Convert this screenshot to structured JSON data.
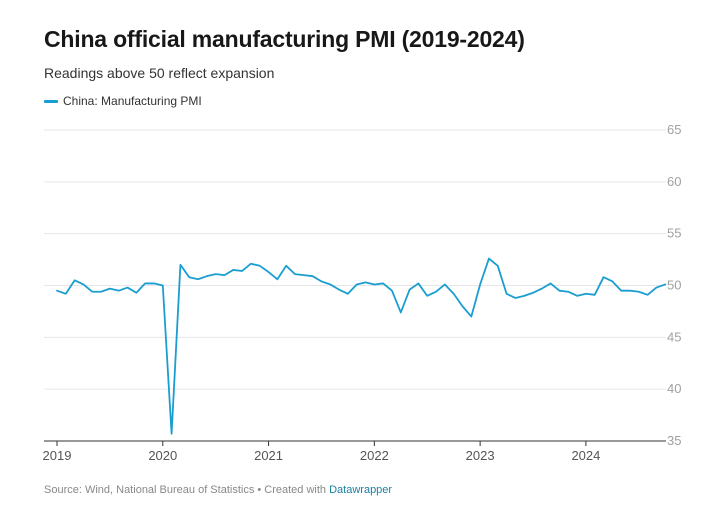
{
  "header": {
    "title": "China official manufacturing PMI (2019-2024)",
    "subtitle": "Readings above 50 reflect expansion"
  },
  "legend": {
    "label": "China: Manufacturing PMI"
  },
  "footer": {
    "source": "Source: Wind, National Bureau of Statistics • Created with",
    "link": "Datawrapper"
  },
  "colors": {
    "series": "#1a9ed1",
    "grid": "#e6e6e6",
    "axis": "#333333"
  },
  "chart_data": {
    "type": "line",
    "title": "China official manufacturing PMI (2019-2024)",
    "subtitle": "Readings above 50 reflect expansion",
    "xlabel": "",
    "ylabel": "",
    "ylim": [
      35,
      65
    ],
    "yticks": [
      35,
      40,
      45,
      50,
      55,
      60,
      65
    ],
    "xticks": [
      "2019",
      "2020",
      "2021",
      "2022",
      "2023",
      "2024"
    ],
    "x_start": "2019-01",
    "series": [
      {
        "name": "China: Manufacturing PMI",
        "values": [
          49.5,
          49.2,
          50.5,
          50.1,
          49.4,
          49.4,
          49.7,
          49.5,
          49.8,
          49.3,
          50.2,
          50.2,
          50.0,
          35.7,
          52.0,
          50.8,
          50.6,
          50.9,
          51.1,
          51.0,
          51.5,
          51.4,
          52.1,
          51.9,
          51.3,
          50.6,
          51.9,
          51.1,
          51.0,
          50.9,
          50.4,
          50.1,
          49.6,
          49.2,
          50.1,
          50.3,
          50.1,
          50.2,
          49.5,
          47.4,
          49.6,
          50.2,
          49.0,
          49.4,
          50.1,
          49.2,
          48.0,
          47.0,
          50.1,
          52.6,
          51.9,
          49.2,
          48.8,
          49.0,
          49.3,
          49.7,
          50.2,
          49.5,
          49.4,
          49.0,
          49.2,
          49.1,
          50.8,
          50.4,
          49.5,
          49.5,
          49.4,
          49.1,
          49.8,
          50.1
        ]
      }
    ]
  }
}
